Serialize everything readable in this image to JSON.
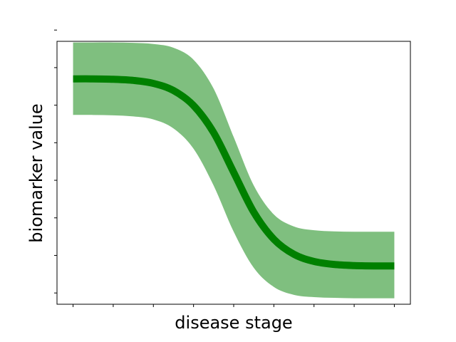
{
  "chart_data": {
    "type": "line",
    "title": "",
    "xlabel": "disease stage",
    "ylabel": "biomarker value",
    "xlim": [
      -0.4,
      8.4
    ],
    "ylim": [
      -0.3,
      6.7
    ],
    "xticks": [
      0,
      1,
      2,
      3,
      4,
      5,
      6,
      7,
      8
    ],
    "yticks": [
      0,
      1,
      2,
      3,
      4,
      5,
      6,
      7
    ],
    "tick_labels_shown": false,
    "grid": false,
    "legend": null,
    "series": [
      {
        "type": "line",
        "color": "#008000",
        "x": [
          0,
          0.5,
          1,
          1.5,
          2,
          2.5,
          3,
          3.5,
          4,
          4.5,
          5,
          5.5,
          6,
          6.5,
          7,
          7.5,
          8
        ],
        "y": [
          5.7,
          5.7,
          5.69,
          5.66,
          5.58,
          5.39,
          4.99,
          4.27,
          3.21,
          2.15,
          1.43,
          1.03,
          0.84,
          0.76,
          0.73,
          0.72,
          0.72
        ]
      },
      {
        "type": "band",
        "color": "#008000",
        "opacity": 0.5,
        "x": [
          0,
          0.5,
          1,
          1.5,
          2,
          2.5,
          3,
          3.5,
          4,
          4.5,
          5,
          5.5,
          6,
          6.5,
          7,
          7.5,
          8
        ],
        "upper": [
          6.67,
          6.67,
          6.67,
          6.66,
          6.63,
          6.53,
          6.21,
          5.44,
          4.15,
          2.86,
          2.09,
          1.77,
          1.67,
          1.64,
          1.63,
          1.63,
          1.63
        ],
        "lower": [
          4.74,
          4.74,
          4.73,
          4.7,
          4.62,
          4.38,
          3.84,
          2.86,
          1.63,
          0.67,
          0.16,
          -0.05,
          -0.11,
          -0.13,
          -0.14,
          -0.14,
          -0.14
        ]
      }
    ]
  }
}
